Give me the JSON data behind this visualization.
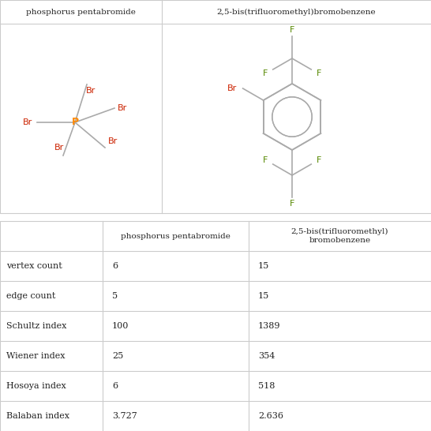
{
  "title1": "phosphorus pentabromide",
  "title2": "2,5-bis(trifluoromethyl)bromobenzene",
  "rows": [
    "vertex count",
    "edge count",
    "Schultz index",
    "Wiener index",
    "Hosoya index",
    "Balaban index"
  ],
  "col1_vals": [
    "6",
    "5",
    "100",
    "25",
    "6",
    "3.727"
  ],
  "col2_vals": [
    "15",
    "15",
    "1389",
    "354",
    "518",
    "2.636"
  ],
  "bg_color": "#ffffff",
  "border_color": "#cccccc",
  "text_color": "#222222",
  "P_color": "#ff8800",
  "Br_color": "#cc2200",
  "F_color": "#558800",
  "bond_color": "#aaaaaa",
  "header_bg": "#ffffff"
}
